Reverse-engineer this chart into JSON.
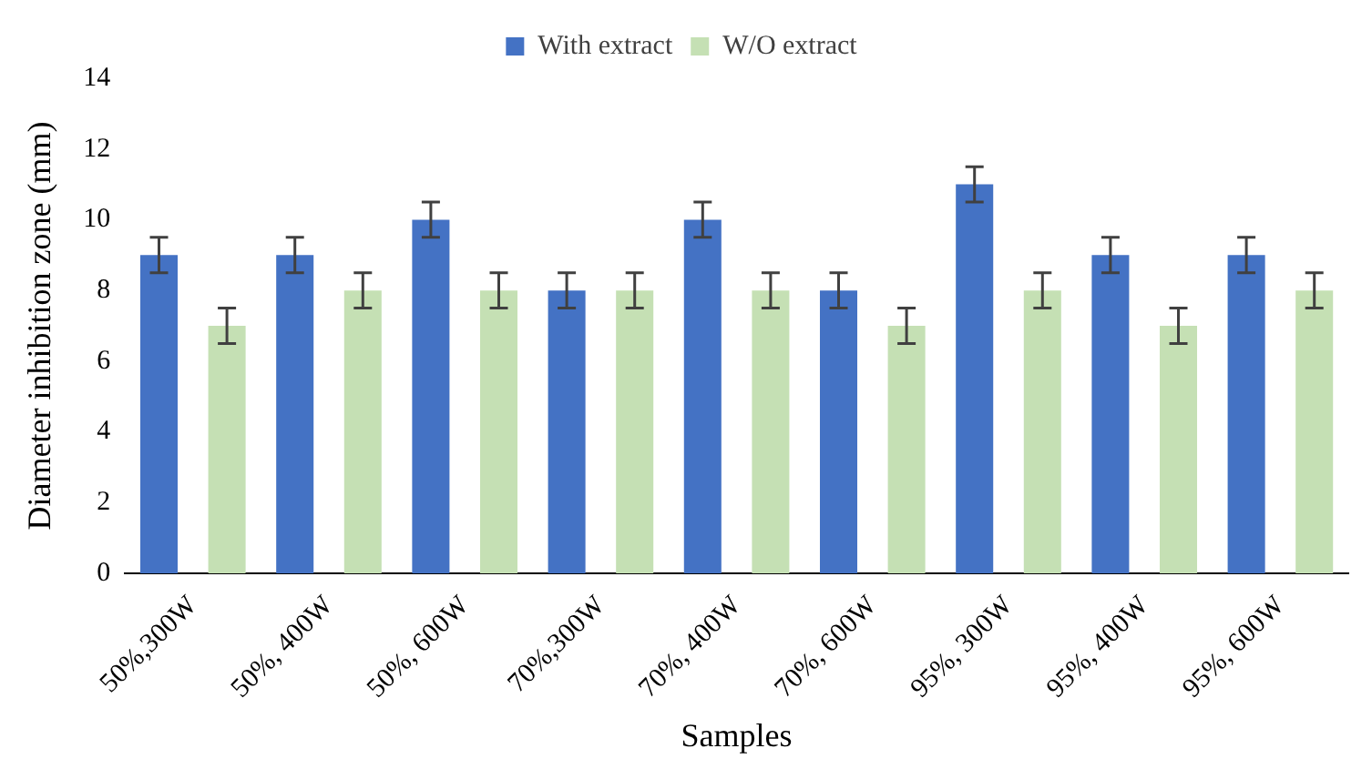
{
  "chart_data": {
    "type": "bar",
    "xlabel": "Samples",
    "ylabel": "Diameter inhibition zone (mm)",
    "categories": [
      "50%,300W",
      "50%, 400W",
      "50%, 600W",
      "70%,300W",
      "70%, 400W",
      "70%, 600W",
      "95%, 300W",
      "95%, 400W",
      "95%, 600W"
    ],
    "series": [
      {
        "name": "With extract",
        "color": "#4472c4",
        "values": [
          9,
          9,
          10,
          8,
          10,
          8,
          11,
          9,
          9
        ],
        "errors": [
          0.5,
          0.5,
          0.5,
          0.5,
          0.5,
          0.5,
          0.5,
          0.5,
          0.5
        ]
      },
      {
        "name": "W/O extract",
        "color": "#c5e0b4",
        "values": [
          7,
          8,
          8,
          8,
          8,
          7,
          8,
          7,
          8
        ],
        "errors": [
          0.5,
          0.5,
          0.5,
          0.5,
          0.5,
          0.5,
          0.5,
          0.5,
          0.5
        ]
      }
    ],
    "ylim": [
      0,
      14
    ],
    "yticks": [
      0,
      2,
      4,
      6,
      8,
      10,
      12,
      14
    ],
    "grid": false,
    "legend": "top"
  }
}
